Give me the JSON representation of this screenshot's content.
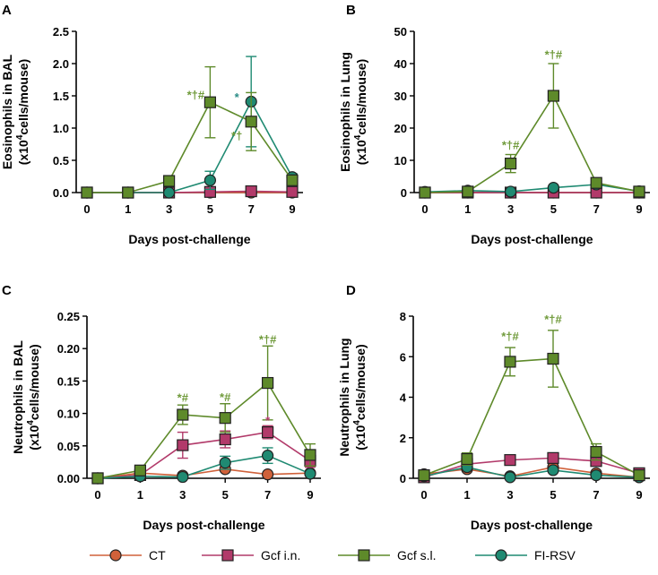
{
  "colors": {
    "CT": "#d0613a",
    "Gcf i.n.": "#b23a6a",
    "Gcf s.l.": "#5e8a2a",
    "FI-RSV": "#1f8a72",
    "sig_green": "#6f9a3a",
    "sig_teal": "#2a8c86",
    "sig_magenta": "#b23a6a"
  },
  "legend": [
    {
      "name": "CT",
      "marker": "circle"
    },
    {
      "name": "Gcf i.n.",
      "marker": "square"
    },
    {
      "name": "Gcf s.l.",
      "marker": "square"
    },
    {
      "name": "FI-RSV",
      "marker": "circle"
    }
  ],
  "chart_data": [
    {
      "panel": "A",
      "type": "line",
      "xlabel": "Days post-challenge",
      "ylabel_line1": "Eosinophils in BAL",
      "ylabel_line2_prefix": "(x10",
      "ylabel_sup": "4",
      "ylabel_line2_suffix": "cells/mouse)",
      "categories": [
        "0",
        "1",
        "3",
        "5",
        "7",
        "9"
      ],
      "ylim": [
        0,
        2.5
      ],
      "yticks": [
        "0.0",
        "0.5",
        "1.0",
        "1.5",
        "2.0",
        "2.5"
      ],
      "series": [
        {
          "name": "CT",
          "values": [
            0,
            0,
            0,
            0,
            0,
            0
          ],
          "err": [
            0,
            0,
            0,
            0,
            0,
            0
          ]
        },
        {
          "name": "Gcf i.n.",
          "values": [
            0,
            0,
            0,
            0.01,
            0.02,
            0.01
          ],
          "err": [
            0,
            0,
            0,
            0,
            0,
            0
          ]
        },
        {
          "name": "Gcf s.l.",
          "values": [
            0,
            0,
            0.18,
            1.4,
            1.1,
            0.19
          ],
          "err": [
            0,
            0,
            0,
            0.55,
            0.45,
            0.08
          ]
        },
        {
          "name": "FI-RSV",
          "values": [
            0,
            0,
            0,
            0.19,
            1.41,
            0.24
          ],
          "err": [
            0,
            0,
            0,
            0.14,
            0.7,
            0.05
          ]
        }
      ],
      "annotations": [
        {
          "text": "*†#",
          "x": 3,
          "y": 1.45,
          "dx": -1,
          "color": "sig_green"
        },
        {
          "text": "*",
          "x": 4,
          "y": 1.42,
          "dx": -1,
          "color": "sig_teal"
        },
        {
          "text": "*†",
          "x": 4,
          "y": 0.82,
          "dx": -1,
          "color": "sig_green"
        }
      ]
    },
    {
      "panel": "B",
      "type": "line",
      "xlabel": "Days post-challenge",
      "ylabel_line1": "Eosinophils in Lung",
      "ylabel_line2_prefix": "(x10",
      "ylabel_sup": "4",
      "ylabel_line2_suffix": "cells/mouse)",
      "categories": [
        "0",
        "1",
        "3",
        "5",
        "7",
        "9"
      ],
      "ylim": [
        0,
        50
      ],
      "yticks": [
        "0",
        "10",
        "20",
        "30",
        "40",
        "50"
      ],
      "series": [
        {
          "name": "CT",
          "values": [
            0,
            0,
            0,
            0,
            0,
            0
          ],
          "err": [
            0,
            0,
            0,
            0,
            0,
            0
          ]
        },
        {
          "name": "Gcf i.n.",
          "values": [
            0,
            0,
            0,
            0,
            0,
            0
          ],
          "err": [
            0,
            0,
            0,
            0,
            0,
            0
          ]
        },
        {
          "name": "Gcf s.l.",
          "values": [
            0,
            0.3,
            9,
            30,
            3,
            0.3
          ],
          "err": [
            0,
            0,
            2.8,
            10,
            1.5,
            0
          ]
        },
        {
          "name": "FI-RSV",
          "values": [
            0.2,
            0.6,
            0.3,
            1.5,
            2.5,
            0.4
          ],
          "err": [
            0,
            0,
            0,
            0,
            1,
            0
          ]
        }
      ],
      "annotations": [
        {
          "text": "*†#",
          "x": 2,
          "y": 13.5,
          "dx": 0,
          "color": "sig_green"
        },
        {
          "text": "*†#",
          "x": 3,
          "y": 41.5,
          "dx": 0,
          "color": "sig_green"
        }
      ]
    },
    {
      "panel": "C",
      "type": "line",
      "xlabel": "Days post-challenge",
      "ylabel_line1": "Neutrophils in BAL",
      "ylabel_line2_prefix": "(x10",
      "ylabel_sup": "4",
      "ylabel_line2_suffix": "cells/mouse)",
      "categories": [
        "0",
        "1",
        "3",
        "5",
        "7",
        "9"
      ],
      "ylim": [
        0,
        0.25
      ],
      "yticks": [
        "0.00",
        "0.05",
        "0.10",
        "0.15",
        "0.20",
        "0.25"
      ],
      "series": [
        {
          "name": "CT",
          "values": [
            0,
            0.008,
            0.004,
            0.014,
            0.006,
            0.008
          ],
          "err": [
            0,
            0,
            0,
            0,
            0,
            0
          ]
        },
        {
          "name": "Gcf i.n.",
          "values": [
            0,
            0.005,
            0.051,
            0.06,
            0.071,
            0.027
          ],
          "err": [
            0,
            0,
            0.02,
            0.013,
            0.01,
            0.01
          ]
        },
        {
          "name": "Gcf s.l.",
          "values": [
            0,
            0.012,
            0.098,
            0.093,
            0.147,
            0.036
          ],
          "err": [
            0,
            0,
            0.015,
            0.022,
            0.057,
            0.017
          ]
        },
        {
          "name": "FI-RSV",
          "values": [
            0,
            0.003,
            0.002,
            0.024,
            0.035,
            0.007
          ],
          "err": [
            0,
            0,
            0,
            0.01,
            0.012,
            0
          ]
        }
      ],
      "annotations": [
        {
          "text": "*#",
          "x": 2,
          "y": 0.118,
          "dx": 0,
          "color": "sig_green"
        },
        {
          "text": "*#",
          "x": 3,
          "y": 0.119,
          "dx": 0,
          "color": "sig_green"
        },
        {
          "text": "*†#",
          "x": 4,
          "y": 0.208,
          "dx": 0,
          "color": "sig_green"
        },
        {
          "text": "*",
          "x": 4,
          "y": 0.083,
          "dx": 0,
          "color": "sig_magenta"
        }
      ]
    },
    {
      "panel": "D",
      "type": "line",
      "xlabel": "Days post-challenge",
      "ylabel_line1": "Neutrophils in Lung",
      "ylabel_line2_prefix": "(x10",
      "ylabel_sup": "4",
      "ylabel_line2_suffix": "cells/mouse)",
      "categories": [
        "0",
        "1",
        "3",
        "5",
        "7",
        "9"
      ],
      "ylim": [
        0,
        8
      ],
      "yticks": [
        "0",
        "2",
        "4",
        "6",
        "8"
      ],
      "series": [
        {
          "name": "CT",
          "values": [
            0.2,
            0.45,
            0.1,
            0.55,
            0.25,
            0.05
          ],
          "err": [
            0,
            0,
            0,
            0,
            0,
            0
          ]
        },
        {
          "name": "Gcf i.n.",
          "values": [
            0.05,
            0.7,
            0.9,
            1.0,
            0.85,
            0.25
          ],
          "err": [
            0,
            0,
            0,
            0,
            0,
            0
          ]
        },
        {
          "name": "Gcf s.l.",
          "values": [
            0.15,
            0.95,
            5.75,
            5.9,
            1.3,
            0.15
          ],
          "err": [
            0,
            0.3,
            0.7,
            1.4,
            0.4,
            0
          ]
        },
        {
          "name": "FI-RSV",
          "values": [
            0.1,
            0.55,
            0.05,
            0.4,
            0.15,
            0.05
          ],
          "err": [
            0,
            0,
            0,
            0,
            0,
            0
          ]
        }
      ],
      "annotations": [
        {
          "text": "*†#",
          "x": 2,
          "y": 6.8,
          "dx": 0,
          "color": "sig_green"
        },
        {
          "text": "*†#",
          "x": 3,
          "y": 7.65,
          "dx": 0,
          "color": "sig_green"
        }
      ]
    }
  ]
}
